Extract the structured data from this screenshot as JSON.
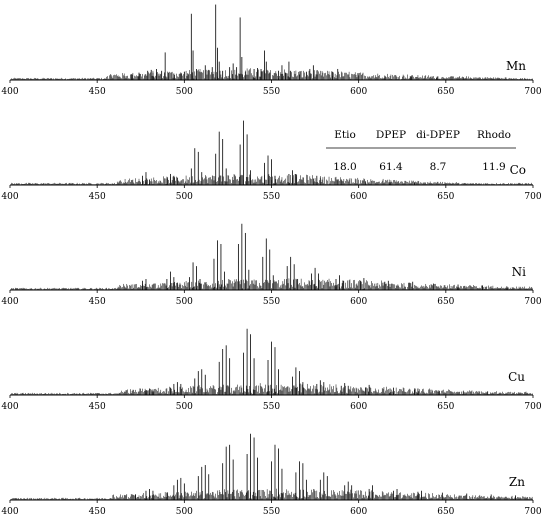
{
  "chart_data": [
    {
      "type": "line",
      "series_name": "Mn",
      "xlim": [
        400,
        700
      ],
      "x_ticks": [
        "400",
        "450",
        "500",
        "550",
        "600",
        "650",
        "700"
      ],
      "peaks": [
        {
          "x": 470,
          "y": 6
        },
        {
          "x": 474,
          "y": 8
        },
        {
          "x": 479,
          "y": 10
        },
        {
          "x": 481,
          "y": 11
        },
        {
          "x": 482,
          "y": 8
        },
        {
          "x": 484,
          "y": 12
        },
        {
          "x": 487,
          "y": 10
        },
        {
          "x": 489,
          "y": 30
        },
        {
          "x": 491,
          "y": 8
        },
        {
          "x": 494,
          "y": 7
        },
        {
          "x": 498,
          "y": 7
        },
        {
          "x": 500,
          "y": 9
        },
        {
          "x": 502,
          "y": 7
        },
        {
          "x": 504,
          "y": 72
        },
        {
          "x": 505,
          "y": 32
        },
        {
          "x": 507,
          "y": 12
        },
        {
          "x": 512,
          "y": 16
        },
        {
          "x": 514,
          "y": 11
        },
        {
          "x": 516,
          "y": 14
        },
        {
          "x": 518,
          "y": 82
        },
        {
          "x": 519,
          "y": 35
        },
        {
          "x": 520,
          "y": 20
        },
        {
          "x": 522,
          "y": 10
        },
        {
          "x": 526,
          "y": 14
        },
        {
          "x": 528,
          "y": 18
        },
        {
          "x": 530,
          "y": 14
        },
        {
          "x": 532,
          "y": 68
        },
        {
          "x": 533,
          "y": 25
        },
        {
          "x": 535,
          "y": 9
        },
        {
          "x": 540,
          "y": 12
        },
        {
          "x": 542,
          "y": 13
        },
        {
          "x": 544,
          "y": 12
        },
        {
          "x": 546,
          "y": 32
        },
        {
          "x": 547,
          "y": 20
        },
        {
          "x": 549,
          "y": 8
        },
        {
          "x": 554,
          "y": 10
        },
        {
          "x": 556,
          "y": 16
        },
        {
          "x": 558,
          "y": 8
        },
        {
          "x": 560,
          "y": 20
        },
        {
          "x": 561,
          "y": 10
        },
        {
          "x": 566,
          "y": 6
        },
        {
          "x": 570,
          "y": 9
        },
        {
          "x": 572,
          "y": 12
        },
        {
          "x": 574,
          "y": 16
        },
        {
          "x": 576,
          "y": 6
        },
        {
          "x": 585,
          "y": 9
        },
        {
          "x": 588,
          "y": 12
        },
        {
          "x": 600,
          "y": 5
        },
        {
          "x": 615,
          "y": 4
        },
        {
          "x": 630,
          "y": 4
        },
        {
          "x": 645,
          "y": 3
        },
        {
          "x": 660,
          "y": 3
        }
      ]
    },
    {
      "type": "line",
      "series_name": "Co",
      "xlim": [
        400,
        700
      ],
      "x_ticks": [
        "400",
        "450",
        "500",
        "550",
        "600",
        "650",
        "700"
      ],
      "peaks": [
        {
          "x": 476,
          "y": 10
        },
        {
          "x": 478,
          "y": 14
        },
        {
          "x": 480,
          "y": 6
        },
        {
          "x": 490,
          "y": 7
        },
        {
          "x": 492,
          "y": 12
        },
        {
          "x": 494,
          "y": 10
        },
        {
          "x": 496,
          "y": 8
        },
        {
          "x": 504,
          "y": 18
        },
        {
          "x": 506,
          "y": 40
        },
        {
          "x": 508,
          "y": 36
        },
        {
          "x": 510,
          "y": 14
        },
        {
          "x": 518,
          "y": 34
        },
        {
          "x": 520,
          "y": 58
        },
        {
          "x": 522,
          "y": 50
        },
        {
          "x": 524,
          "y": 18
        },
        {
          "x": 532,
          "y": 44
        },
        {
          "x": 534,
          "y": 70
        },
        {
          "x": 536,
          "y": 55
        },
        {
          "x": 538,
          "y": 16
        },
        {
          "x": 546,
          "y": 24
        },
        {
          "x": 548,
          "y": 32
        },
        {
          "x": 550,
          "y": 28
        },
        {
          "x": 552,
          "y": 10
        },
        {
          "x": 560,
          "y": 12
        },
        {
          "x": 562,
          "y": 16
        },
        {
          "x": 564,
          "y": 12
        },
        {
          "x": 574,
          "y": 7
        },
        {
          "x": 576,
          "y": 10
        },
        {
          "x": 578,
          "y": 8
        },
        {
          "x": 588,
          "y": 5
        },
        {
          "x": 590,
          "y": 6
        },
        {
          "x": 604,
          "y": 4
        },
        {
          "x": 618,
          "y": 3
        },
        {
          "x": 632,
          "y": 3
        }
      ],
      "table": {
        "headers": [
          "Etio",
          "DPEP",
          "di-DPEP",
          "Rhodo"
        ],
        "values": [
          "18.0",
          "61.4",
          "8.7",
          "11.9"
        ]
      }
    },
    {
      "type": "line",
      "series_name": "Ni",
      "xlim": [
        400,
        700
      ],
      "x_ticks": [
        "400",
        "450",
        "500",
        "550",
        "600",
        "650",
        "700"
      ],
      "peaks": [
        {
          "x": 476,
          "y": 10
        },
        {
          "x": 478,
          "y": 12
        },
        {
          "x": 490,
          "y": 12
        },
        {
          "x": 492,
          "y": 20
        },
        {
          "x": 494,
          "y": 14
        },
        {
          "x": 496,
          "y": 8
        },
        {
          "x": 503,
          "y": 14
        },
        {
          "x": 505,
          "y": 30
        },
        {
          "x": 507,
          "y": 26
        },
        {
          "x": 509,
          "y": 12
        },
        {
          "x": 517,
          "y": 34
        },
        {
          "x": 519,
          "y": 54
        },
        {
          "x": 521,
          "y": 50
        },
        {
          "x": 523,
          "y": 20
        },
        {
          "x": 531,
          "y": 50
        },
        {
          "x": 533,
          "y": 72
        },
        {
          "x": 535,
          "y": 62
        },
        {
          "x": 537,
          "y": 22
        },
        {
          "x": 545,
          "y": 36
        },
        {
          "x": 547,
          "y": 56
        },
        {
          "x": 549,
          "y": 44
        },
        {
          "x": 551,
          "y": 16
        },
        {
          "x": 559,
          "y": 26
        },
        {
          "x": 561,
          "y": 36
        },
        {
          "x": 563,
          "y": 28
        },
        {
          "x": 565,
          "y": 12
        },
        {
          "x": 573,
          "y": 18
        },
        {
          "x": 575,
          "y": 24
        },
        {
          "x": 577,
          "y": 18
        },
        {
          "x": 587,
          "y": 12
        },
        {
          "x": 589,
          "y": 16
        },
        {
          "x": 591,
          "y": 10
        },
        {
          "x": 601,
          "y": 10
        },
        {
          "x": 603,
          "y": 13
        },
        {
          "x": 615,
          "y": 9
        },
        {
          "x": 617,
          "y": 10
        },
        {
          "x": 629,
          "y": 8
        },
        {
          "x": 631,
          "y": 9
        },
        {
          "x": 643,
          "y": 7
        },
        {
          "x": 657,
          "y": 6
        },
        {
          "x": 671,
          "y": 5
        },
        {
          "x": 685,
          "y": 4
        }
      ]
    },
    {
      "type": "line",
      "series_name": "Cu",
      "xlim": [
        400,
        700
      ],
      "x_ticks": [
        "400",
        "450",
        "500",
        "550",
        "600",
        "650",
        "700"
      ],
      "peaks": [
        {
          "x": 478,
          "y": 5
        },
        {
          "x": 480,
          "y": 7
        },
        {
          "x": 482,
          "y": 6
        },
        {
          "x": 492,
          "y": 8
        },
        {
          "x": 494,
          "y": 12
        },
        {
          "x": 496,
          "y": 14
        },
        {
          "x": 498,
          "y": 12
        },
        {
          "x": 506,
          "y": 18
        },
        {
          "x": 508,
          "y": 26
        },
        {
          "x": 510,
          "y": 28
        },
        {
          "x": 512,
          "y": 22
        },
        {
          "x": 520,
          "y": 36
        },
        {
          "x": 522,
          "y": 50
        },
        {
          "x": 524,
          "y": 54
        },
        {
          "x": 526,
          "y": 40
        },
        {
          "x": 534,
          "y": 46
        },
        {
          "x": 536,
          "y": 72
        },
        {
          "x": 538,
          "y": 66
        },
        {
          "x": 540,
          "y": 40
        },
        {
          "x": 548,
          "y": 38
        },
        {
          "x": 550,
          "y": 58
        },
        {
          "x": 552,
          "y": 52
        },
        {
          "x": 554,
          "y": 28
        },
        {
          "x": 562,
          "y": 20
        },
        {
          "x": 564,
          "y": 30
        },
        {
          "x": 566,
          "y": 26
        },
        {
          "x": 568,
          "y": 14
        },
        {
          "x": 576,
          "y": 12
        },
        {
          "x": 578,
          "y": 16
        },
        {
          "x": 580,
          "y": 14
        },
        {
          "x": 590,
          "y": 10
        },
        {
          "x": 592,
          "y": 13
        },
        {
          "x": 594,
          "y": 10
        },
        {
          "x": 604,
          "y": 8
        },
        {
          "x": 606,
          "y": 11
        },
        {
          "x": 618,
          "y": 7
        },
        {
          "x": 620,
          "y": 8
        },
        {
          "x": 632,
          "y": 6
        },
        {
          "x": 634,
          "y": 7
        },
        {
          "x": 646,
          "y": 5
        },
        {
          "x": 660,
          "y": 4
        },
        {
          "x": 674,
          "y": 4
        }
      ]
    },
    {
      "type": "line",
      "series_name": "Zn",
      "xlim": [
        400,
        700
      ],
      "x_ticks": [
        "400",
        "450",
        "500",
        "550",
        "600",
        "650",
        "700"
      ],
      "peaks": [
        {
          "x": 472,
          "y": 6
        },
        {
          "x": 478,
          "y": 10
        },
        {
          "x": 480,
          "y": 12
        },
        {
          "x": 482,
          "y": 10
        },
        {
          "x": 490,
          "y": 8
        },
        {
          "x": 494,
          "y": 16
        },
        {
          "x": 496,
          "y": 22
        },
        {
          "x": 498,
          "y": 24
        },
        {
          "x": 500,
          "y": 18
        },
        {
          "x": 508,
          "y": 26
        },
        {
          "x": 510,
          "y": 36
        },
        {
          "x": 512,
          "y": 38
        },
        {
          "x": 514,
          "y": 28
        },
        {
          "x": 522,
          "y": 40
        },
        {
          "x": 524,
          "y": 58
        },
        {
          "x": 526,
          "y": 60
        },
        {
          "x": 528,
          "y": 44
        },
        {
          "x": 536,
          "y": 50
        },
        {
          "x": 538,
          "y": 72
        },
        {
          "x": 540,
          "y": 68
        },
        {
          "x": 542,
          "y": 46
        },
        {
          "x": 550,
          "y": 42
        },
        {
          "x": 552,
          "y": 60
        },
        {
          "x": 554,
          "y": 56
        },
        {
          "x": 556,
          "y": 34
        },
        {
          "x": 564,
          "y": 30
        },
        {
          "x": 566,
          "y": 42
        },
        {
          "x": 568,
          "y": 40
        },
        {
          "x": 570,
          "y": 22
        },
        {
          "x": 578,
          "y": 22
        },
        {
          "x": 580,
          "y": 30
        },
        {
          "x": 582,
          "y": 26
        },
        {
          "x": 592,
          "y": 16
        },
        {
          "x": 594,
          "y": 20
        },
        {
          "x": 596,
          "y": 16
        },
        {
          "x": 606,
          "y": 12
        },
        {
          "x": 608,
          "y": 16
        },
        {
          "x": 620,
          "y": 10
        },
        {
          "x": 622,
          "y": 12
        },
        {
          "x": 634,
          "y": 9
        },
        {
          "x": 636,
          "y": 10
        },
        {
          "x": 648,
          "y": 8
        },
        {
          "x": 662,
          "y": 7
        },
        {
          "x": 676,
          "y": 6
        },
        {
          "x": 690,
          "y": 5
        }
      ]
    }
  ]
}
